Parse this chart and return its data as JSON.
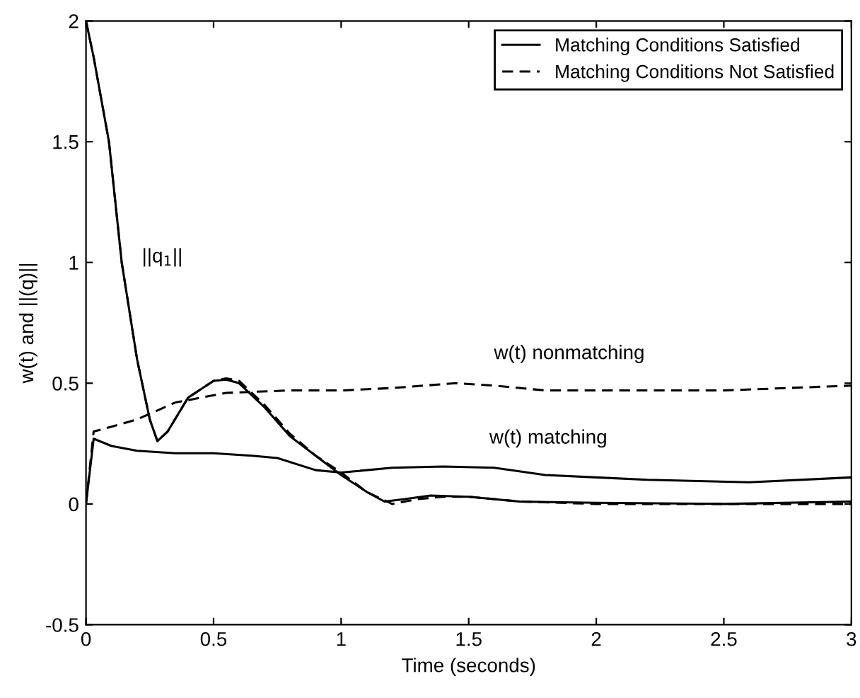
{
  "chart_data": {
    "type": "line",
    "xlabel": "Time (seconds)",
    "ylabel": "w(t) and ||(q)||",
    "xlim": [
      0,
      3
    ],
    "ylim": [
      -0.5,
      2
    ],
    "xticks": [
      0,
      0.5,
      1,
      1.5,
      2,
      2.5,
      3
    ],
    "yticks": [
      -0.5,
      0,
      0.5,
      1,
      1.5,
      2
    ],
    "grid": false,
    "legend": "top right",
    "series": [
      {
        "name": "Matching Conditions Satisfied",
        "color": "#000000",
        "line_style": "solid",
        "x": [
          0,
          0.03,
          0.09,
          0.14,
          0.2,
          0.25,
          0.28,
          0.32,
          0.4,
          0.5,
          0.55,
          0.6,
          0.7,
          0.8,
          0.9,
          1.0,
          1.1,
          1.17,
          1.25,
          1.35,
          1.5,
          1.7,
          2.0,
          2.5,
          3.0
        ],
        "values": [
          2,
          1.85,
          1.5,
          1.0,
          0.6,
          0.35,
          0.26,
          0.3,
          0.44,
          0.51,
          0.515,
          0.5,
          0.4,
          0.28,
          0.2,
          0.12,
          0.05,
          0.01,
          0.02,
          0.035,
          0.03,
          0.01,
          0.005,
          0.0,
          0.01
        ]
      },
      {
        "name": "Matching Conditions Not Satisfied",
        "color": "#000000",
        "line_style": "dashed",
        "x": [
          0,
          0.03,
          0.09,
          0.14,
          0.2,
          0.25,
          0.28,
          0.32,
          0.4,
          0.5,
          0.55,
          0.6,
          0.7,
          0.8,
          0.9,
          1.0,
          1.1,
          1.2,
          1.3,
          1.4,
          1.5,
          1.7,
          2.0,
          2.5,
          3.0
        ],
        "values": [
          2,
          1.85,
          1.5,
          1.0,
          0.6,
          0.35,
          0.26,
          0.3,
          0.44,
          0.51,
          0.52,
          0.51,
          0.41,
          0.29,
          0.2,
          0.13,
          0.05,
          0.0,
          0.02,
          0.03,
          0.03,
          0.01,
          0.0,
          0.0,
          0.0
        ]
      },
      {
        "color": "#000000",
        "line_style": "solid",
        "x": [
          0,
          0.03,
          0.1,
          0.2,
          0.35,
          0.5,
          0.65,
          0.75,
          0.9,
          1.0,
          1.2,
          1.4,
          1.6,
          1.8,
          2.0,
          2.2,
          2.6,
          3.0
        ],
        "values": [
          0,
          0.27,
          0.24,
          0.22,
          0.21,
          0.21,
          0.2,
          0.19,
          0.14,
          0.13,
          0.15,
          0.155,
          0.15,
          0.12,
          0.11,
          0.1,
          0.09,
          0.11
        ]
      },
      {
        "color": "#000000",
        "line_style": "dashed",
        "x": [
          0,
          0.03,
          0.1,
          0.2,
          0.35,
          0.55,
          0.8,
          1.0,
          1.2,
          1.45,
          1.6,
          1.8,
          2.0,
          2.5,
          3.0
        ],
        "values": [
          0,
          0.3,
          0.32,
          0.35,
          0.42,
          0.46,
          0.47,
          0.47,
          0.48,
          0.5,
          0.49,
          0.47,
          0.47,
          0.47,
          0.49
        ]
      }
    ],
    "annotations": [
      "||q$_{1}$||",
      "w(t) nonmatching",
      "w(t) matching"
    ]
  }
}
